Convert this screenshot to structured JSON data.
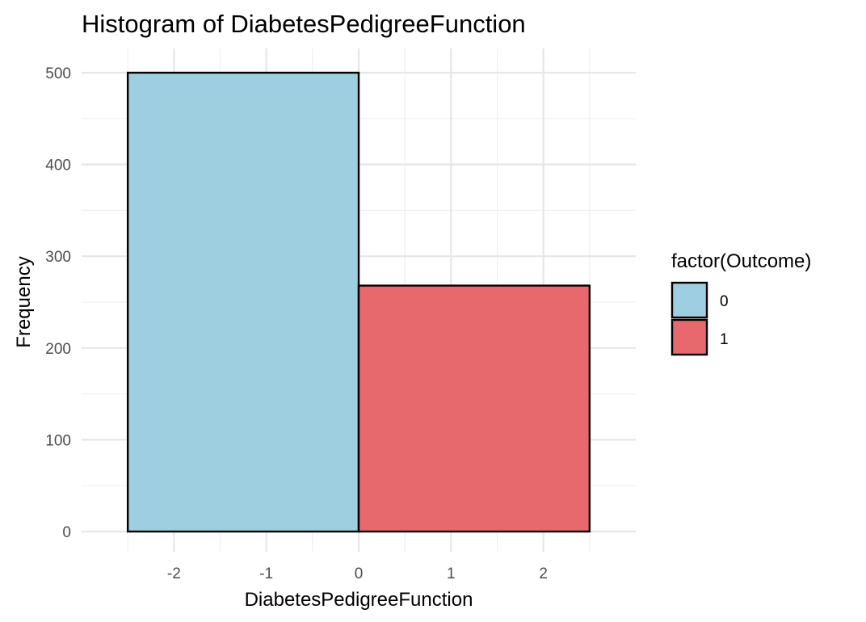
{
  "chart_data": {
    "type": "bar",
    "title": "Histogram of DiabetesPedigreeFunction",
    "xlabel": "DiabetesPedigreeFunction",
    "ylabel": "Frequency",
    "xlim": [
      -3.0,
      3.0
    ],
    "ylim": [
      0,
      520
    ],
    "x_ticks": [
      -2,
      -1,
      0,
      1,
      2
    ],
    "x_minor_ticks": [
      -2.5,
      -1.5,
      -0.5,
      0.5,
      1.5,
      2.5
    ],
    "y_ticks": [
      0,
      100,
      200,
      300,
      400,
      500
    ],
    "y_minor_ticks": [
      50,
      150,
      250,
      350,
      450
    ],
    "grid": true,
    "legend_position": "right",
    "legend_title": "factor(Outcome)",
    "series": [
      {
        "name": "0",
        "color": "#9ecfe0",
        "bins": [
          {
            "x_start": -2.5,
            "x_end": 0,
            "count": 500
          }
        ]
      },
      {
        "name": "1",
        "color": "#e8696d",
        "bins": [
          {
            "x_start": 0,
            "x_end": 2.5,
            "count": 268
          }
        ]
      }
    ]
  }
}
